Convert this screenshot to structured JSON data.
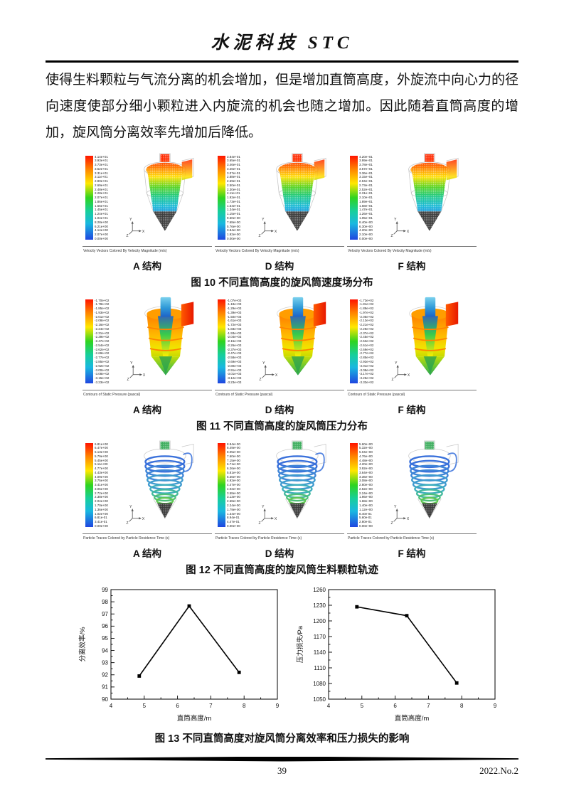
{
  "header": {
    "title": "水泥科技 STC"
  },
  "paragraph": {
    "text": "使得生料颗粒与气流分离的机会增加，但是增加直筒高度，外旋流中向心力的径向速度使部分细小颗粒进入内旋流的机会也随之增加。因此随着直筒高度的增加，旋风筒分离效率先增加后降低。"
  },
  "figures": [
    {
      "number": "图 10",
      "caption": "图 10 不同直筒高度的旋风筒速度场分布",
      "footer_text": "Velocity Vectors Colored By Velocity Magnitude (m/s)",
      "svg_template": "svg-velocity",
      "axis_triad": {
        "up": "Y",
        "right": "X",
        "diag": "Z"
      },
      "panels": [
        {
          "label": "A 结构",
          "legend_values": [
            "4.14e+01",
            "3.93e+01",
            "3.73e+01",
            "3.52e+01",
            "3.31e+01",
            "3.11e+01",
            "2.90e+01",
            "2.69e+01",
            "2.48e+01",
            "2.28e+01",
            "2.07e+01",
            "1.86e+01",
            "1.66e+01",
            "1.45e+01",
            "1.24e+01",
            "1.04e+01",
            "8.28e+00",
            "6.21e+00",
            "4.14e+00",
            "2.07e+00",
            "0.00e+00"
          ]
        },
        {
          "label": "D 结构",
          "legend_values": [
            "3.84e+01",
            "3.65e+01",
            "3.46e+01",
            "3.26e+01",
            "3.07e+01",
            "2.88e+01",
            "2.69e+01",
            "2.50e+01",
            "2.30e+01",
            "2.11e+01",
            "1.92e+01",
            "1.73e+01",
            "1.54e+01",
            "1.34e+01",
            "1.15e+01",
            "9.60e+00",
            "7.68e+00",
            "5.76e+00",
            "3.84e+00",
            "1.92e+00",
            "0.00e+00"
          ]
        },
        {
          "label": "F 结构",
          "legend_values": [
            "4.20e+01",
            "3.99e+01",
            "3.78e+01",
            "3.57e+01",
            "3.36e+01",
            "3.15e+01",
            "2.94e+01",
            "2.73e+01",
            "2.52e+01",
            "2.31e+01",
            "2.10e+01",
            "1.89e+01",
            "1.68e+01",
            "1.47e+01",
            "1.26e+01",
            "1.05e+01",
            "8.40e+00",
            "6.30e+00",
            "4.20e+00",
            "2.10e+00",
            "0.00e+00"
          ]
        }
      ]
    },
    {
      "number": "图 11",
      "caption": "图 11 不同直筒高度的旋风筒压力分布",
      "footer_text": "Contours of Static Pressure (pascal)",
      "svg_template": "svg-pressure",
      "axis_triad": {
        "up": "Y",
        "right": "X",
        "diag": "Z"
      },
      "panels": [
        {
          "label": "A 结构",
          "legend_values": [
            "-1.70e+02",
            "-1.78e+02",
            "-1.85e+02",
            "-1.93e+02",
            "-2.01e+02",
            "-2.08e+02",
            "-2.16e+02",
            "-2.24e+02",
            "-2.31e+02",
            "-2.39e+02",
            "-2.47e+02",
            "-2.54e+02",
            "-2.62e+02",
            "-2.69e+02",
            "-2.77e+02",
            "-2.85e+02",
            "-2.92e+02",
            "-3.00e+02",
            "-3.08e+02",
            "-3.15e+02",
            "-3.23e+02"
          ]
        },
        {
          "label": "D 结构",
          "legend_values": [
            "-1.07e+03",
            "-1.18e+03",
            "-1.29e+03",
            "-1.39e+03",
            "-1.50e+03",
            "-1.61e+03",
            "-1.72e+03",
            "-1.83e+03",
            "-1.93e+03",
            "-2.04e+03",
            "-2.15e+03",
            "-2.26e+03",
            "-2.37e+03",
            "-2.47e+03",
            "-2.58e+03",
            "-2.69e+03",
            "-2.80e+03",
            "-2.91e+03",
            "-3.01e+03",
            "-3.12e+03",
            "-3.23e+03"
          ]
        },
        {
          "label": "F 结构",
          "legend_values": [
            "-1.73e+02",
            "-1.81e+02",
            "-1.89e+02",
            "-1.97e+02",
            "-2.05e+02",
            "-2.13e+02",
            "-2.21e+02",
            "-2.29e+02",
            "-2.37e+02",
            "-2.45e+02",
            "-2.53e+02",
            "-2.61e+02",
            "-2.69e+02",
            "-2.77e+02",
            "-2.85e+02",
            "-2.93e+02",
            "-3.01e+02",
            "-3.09e+02",
            "-3.17e+02",
            "-3.25e+02",
            "-3.33e+02"
          ]
        }
      ]
    },
    {
      "number": "图 12",
      "caption": "图 12 不同直筒高度的旋风筒生料颗粒轨迹",
      "footer_text": "Particle Traces Colored by Particle Residence Time (s)",
      "svg_template": "svg-traces",
      "axis_triad": {
        "up": "Y",
        "right": "X",
        "diag": "Z"
      },
      "panels": [
        {
          "label": "A 结构",
          "legend_values": [
            "6.81e+00",
            "6.47e+00",
            "6.13e+00",
            "5.79e+00",
            "5.45e+00",
            "5.11e+00",
            "4.77e+00",
            "4.43e+00",
            "4.09e+00",
            "3.75e+00",
            "3.41e+00",
            "3.06e+00",
            "2.72e+00",
            "2.38e+00",
            "2.04e+00",
            "1.70e+00",
            "1.36e+00",
            "1.02e+00",
            "6.81e-01",
            "3.41e-01",
            "0.00e+00"
          ]
        },
        {
          "label": "D 结构",
          "legend_values": [
            "8.94e+00",
            "8.49e+00",
            "8.05e+00",
            "7.60e+00",
            "7.15e+00",
            "6.71e+00",
            "6.26e+00",
            "5.81e+00",
            "5.36e+00",
            "4.92e+00",
            "4.47e+00",
            "4.02e+00",
            "3.58e+00",
            "3.13e+00",
            "2.68e+00",
            "2.24e+00",
            "1.79e+00",
            "1.34e+00",
            "8.94e-01",
            "4.47e-01",
            "0.00e+00"
          ]
        },
        {
          "label": "F 结构",
          "legend_values": [
            "5.60e+00",
            "5.32e+00",
            "5.04e+00",
            "4.76e+00",
            "4.48e+00",
            "4.20e+00",
            "3.92e+00",
            "3.64e+00",
            "3.36e+00",
            "3.08e+00",
            "2.80e+00",
            "2.52e+00",
            "2.24e+00",
            "1.96e+00",
            "1.68e+00",
            "1.40e+00",
            "1.12e+00",
            "8.40e-01",
            "5.60e-01",
            "2.80e-01",
            "0.00e+00"
          ]
        }
      ]
    }
  ],
  "figure13": {
    "caption": "图 13 不同直筒高度对旋风筒分离效率和压力损失的影响"
  },
  "chart_data": [
    {
      "type": "line",
      "title": "",
      "xlabel": "直筒高度/m",
      "ylabel": "分离效率/%",
      "xlim": [
        4,
        9
      ],
      "ylim": [
        90,
        99
      ],
      "xtick_step": 1,
      "ytick_step": 1,
      "xminor_step": 0.5,
      "yminor_step": 0.5,
      "grid": false,
      "marker": "square",
      "line_color": "#000000",
      "series": [
        {
          "name": "分离效率",
          "x": [
            4.85,
            6.35,
            7.85
          ],
          "y": [
            91.9,
            97.65,
            92.2
          ]
        }
      ]
    },
    {
      "type": "line",
      "title": "",
      "xlabel": "直筒高度/m",
      "ylabel": "压力损失/Pa",
      "xlim": [
        4,
        9
      ],
      "ylim": [
        1050,
        1260
      ],
      "xtick_step": 1,
      "ytick_step": 30,
      "xminor_step": 0.5,
      "yminor_step": 15,
      "grid": false,
      "marker": "square",
      "line_color": "#000000",
      "series": [
        {
          "name": "压力损失",
          "x": [
            4.85,
            6.35,
            7.85
          ],
          "y": [
            1227,
            1210,
            1081
          ]
        }
      ]
    }
  ],
  "footer": {
    "page_number": "39",
    "issue": "2022.No.2"
  }
}
